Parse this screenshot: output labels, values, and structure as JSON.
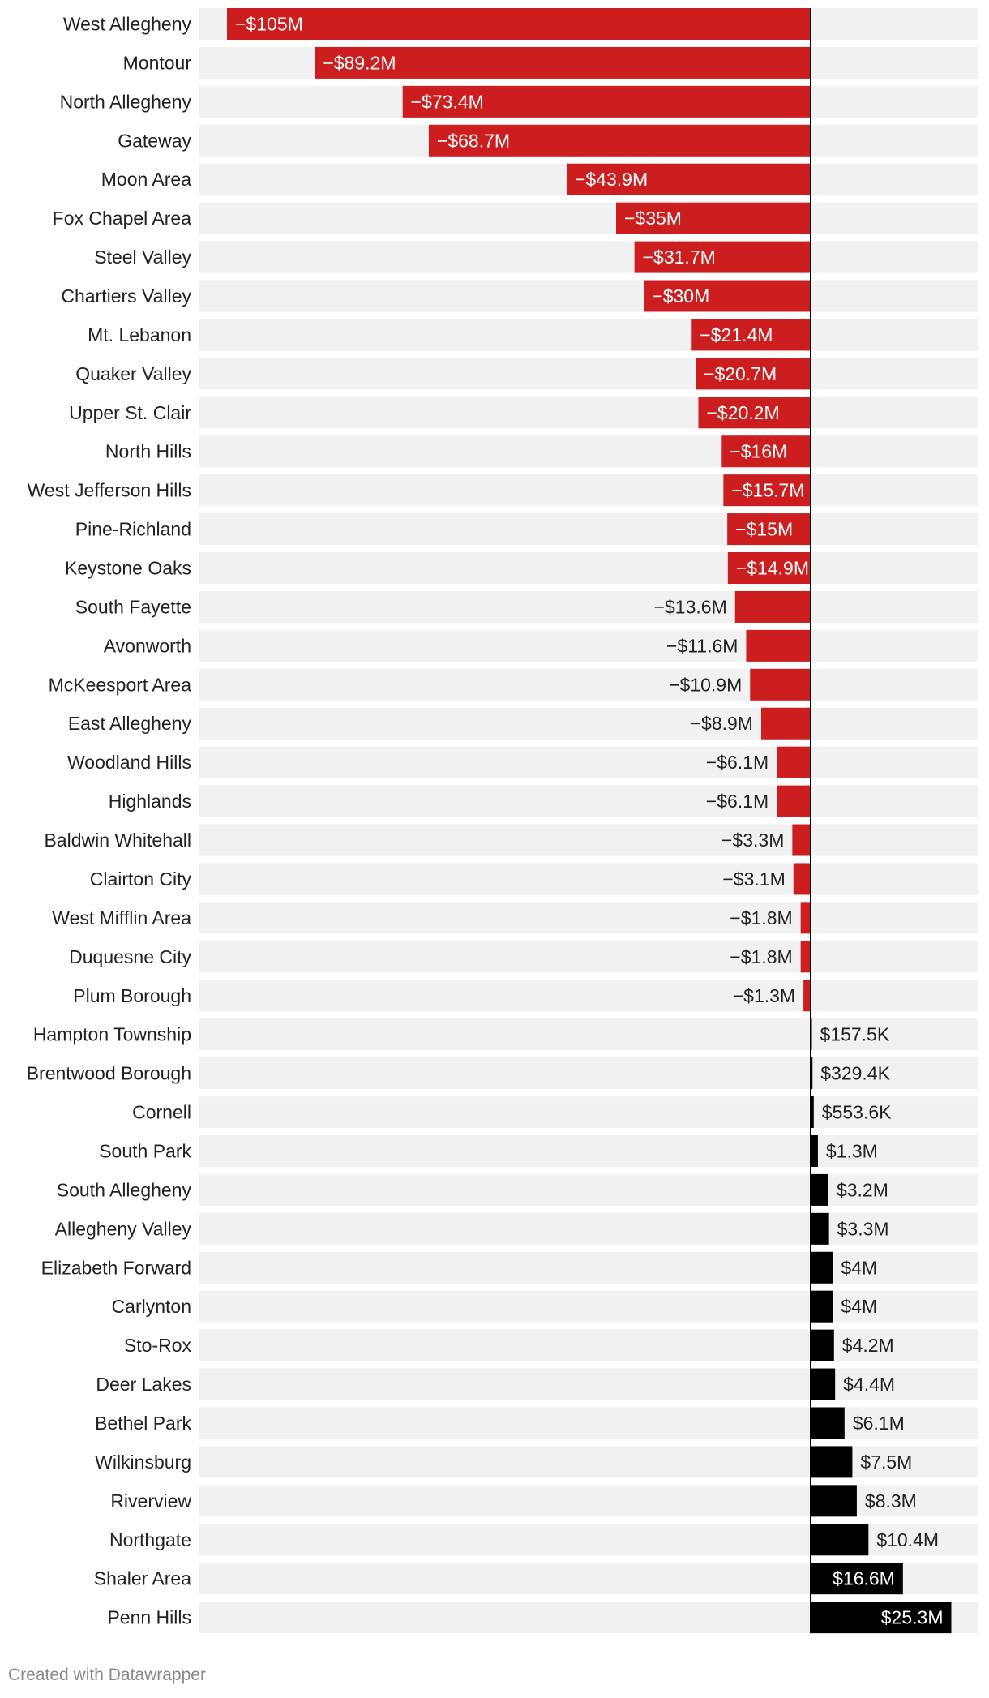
{
  "chart_data": {
    "type": "bar",
    "orientation": "horizontal",
    "title": "",
    "xlabel": "",
    "ylabel": "",
    "xlim": [
      -105,
      35
    ],
    "colors": {
      "negative": "#cc1e1e",
      "positive": "#000000",
      "background_band": "#f1f1f1"
    },
    "categories": [
      "West Allegheny",
      "Montour",
      "North Allegheny",
      "Gateway",
      "Moon Area",
      "Fox Chapel Area",
      "Steel Valley",
      "Chartiers Valley",
      "Mt. Lebanon",
      "Quaker Valley",
      "Upper St. Clair",
      "North Hills",
      "West Jefferson Hills",
      "Pine-Richland",
      "Keystone Oaks",
      "South Fayette",
      "Avonworth",
      "McKeesport Area",
      "East Allegheny",
      "Woodland Hills",
      "Highlands",
      "Baldwin Whitehall",
      "Clairton City",
      "West Mifflin Area",
      "Duquesne City",
      "Plum Borough",
      "Hampton Township",
      "Brentwood Borough",
      "Cornell",
      "South Park",
      "South Allegheny",
      "Allegheny Valley",
      "Elizabeth Forward",
      "Carlynton",
      "Sto-Rox",
      "Deer Lakes",
      "Bethel Park",
      "Wilkinsburg",
      "Riverview",
      "Northgate",
      "Shaler Area",
      "Penn Hills"
    ],
    "values": [
      -105,
      -89.2,
      -73.4,
      -68.7,
      -43.9,
      -35,
      -31.7,
      -30,
      -21.4,
      -20.7,
      -20.2,
      -16,
      -15.7,
      -15,
      -14.9,
      -13.6,
      -11.6,
      -10.9,
      -8.9,
      -6.1,
      -6.1,
      -3.3,
      -3.1,
      -1.8,
      -1.8,
      -1.3,
      0.1575,
      0.3294,
      0.5536,
      1.3,
      3.2,
      3.3,
      4,
      4,
      4.2,
      4.4,
      6.1,
      7.5,
      8.3,
      10.4,
      16.6,
      25.3
    ],
    "value_labels": [
      "−$105M",
      "−$89.2M",
      "−$73.4M",
      "−$68.7M",
      "−$43.9M",
      "−$35M",
      "−$31.7M",
      "−$30M",
      "−$21.4M",
      "−$20.7M",
      "−$20.2M",
      "−$16M",
      "−$15.7M",
      "−$15M",
      "−$14.9M",
      "−$13.6M",
      "−$11.6M",
      "−$10.9M",
      "−$8.9M",
      "−$6.1M",
      "−$6.1M",
      "−$3.3M",
      "−$3.1M",
      "−$1.8M",
      "−$1.8M",
      "−$1.3M",
      "$157.5K",
      "$329.4K",
      "$553.6K",
      "$1.3M",
      "$3.2M",
      "$3.3M",
      "$4M",
      "$4M",
      "$4.2M",
      "$4.4M",
      "$6.1M",
      "$7.5M",
      "$8.3M",
      "$10.4M",
      "$16.6M",
      "$25.3M"
    ],
    "unit": "millions of dollars"
  },
  "footer": {
    "credit": "Created with Datawrapper"
  }
}
